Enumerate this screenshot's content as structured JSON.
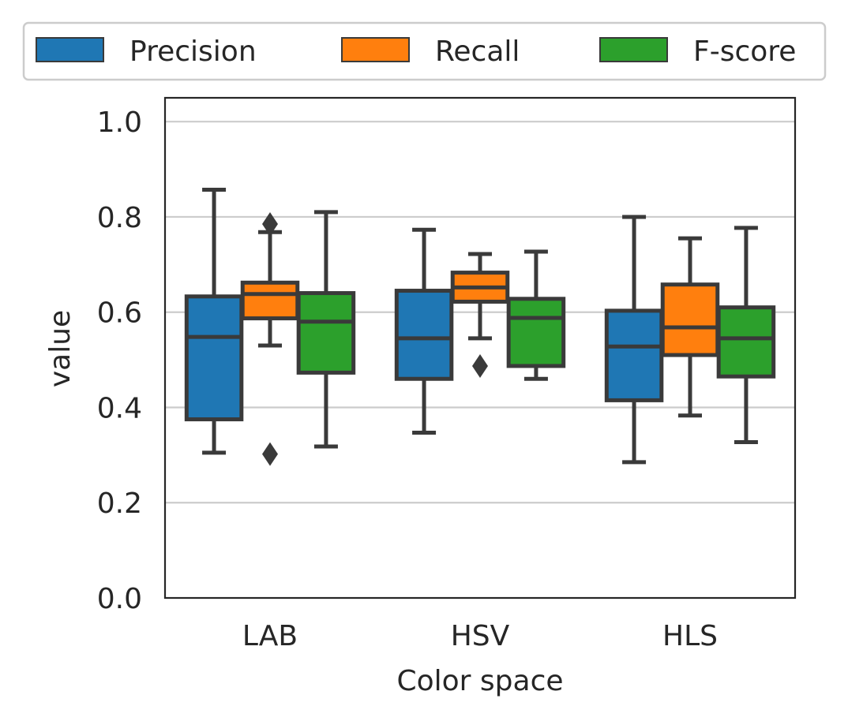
{
  "colors": {
    "Precision": "#1f77b4",
    "Recall": "#ff7f0e",
    "F-score": "#2ca02c",
    "edge": "#3a3a3a",
    "grid": "#cccccc",
    "text": "#262626"
  },
  "chart_data": {
    "type": "boxplot",
    "title": "",
    "xlabel": "Color space",
    "ylabel": "value",
    "categories": [
      "LAB",
      "HSV",
      "HLS"
    ],
    "ylim": [
      0.0,
      1.05
    ],
    "yticks": [
      "0.0",
      "0.2",
      "0.4",
      "0.6",
      "0.8",
      "1.0"
    ],
    "grid": "horizontal",
    "legend_position": "top",
    "series": [
      {
        "name": "Precision",
        "boxes": [
          {
            "whislo": 0.305,
            "q1": 0.375,
            "med": 0.548,
            "q3": 0.633,
            "whishi": 0.857,
            "fliers": []
          },
          {
            "whislo": 0.347,
            "q1": 0.46,
            "med": 0.545,
            "q3": 0.645,
            "whishi": 0.773,
            "fliers": []
          },
          {
            "whislo": 0.285,
            "q1": 0.415,
            "med": 0.528,
            "q3": 0.603,
            "whishi": 0.8,
            "fliers": []
          }
        ]
      },
      {
        "name": "Recall",
        "boxes": [
          {
            "whislo": 0.53,
            "q1": 0.587,
            "med": 0.638,
            "q3": 0.662,
            "whishi": 0.768,
            "fliers": [
              0.302,
              0.785
            ]
          },
          {
            "whislo": 0.545,
            "q1": 0.622,
            "med": 0.652,
            "q3": 0.683,
            "whishi": 0.722,
            "fliers": [
              0.487
            ]
          },
          {
            "whislo": 0.383,
            "q1": 0.51,
            "med": 0.568,
            "q3": 0.658,
            "whishi": 0.755,
            "fliers": []
          }
        ]
      },
      {
        "name": "F-score",
        "boxes": [
          {
            "whislo": 0.318,
            "q1": 0.473,
            "med": 0.58,
            "q3": 0.64,
            "whishi": 0.81,
            "fliers": []
          },
          {
            "whislo": 0.46,
            "q1": 0.487,
            "med": 0.588,
            "q3": 0.628,
            "whishi": 0.727,
            "fliers": []
          },
          {
            "whislo": 0.327,
            "q1": 0.465,
            "med": 0.545,
            "q3": 0.61,
            "whishi": 0.777,
            "fliers": []
          }
        ]
      }
    ]
  }
}
